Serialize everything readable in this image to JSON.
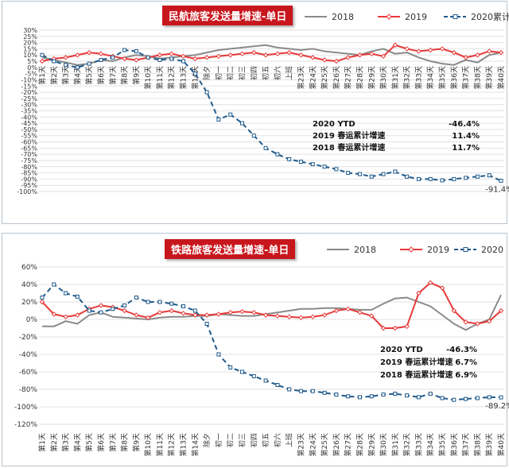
{
  "colors": {
    "s2018": "#8a8a8a",
    "s2019": "#e63939",
    "s2020": "#1f5a8c",
    "title_bg": "#c8161d",
    "grid": "#e2e2e2"
  },
  "categories": [
    "第1天",
    "第2天",
    "第3天",
    "第4天",
    "第5天",
    "第6天",
    "第7天",
    "第8天",
    "第9天",
    "第10天",
    "第11天",
    "第12天",
    "第13天",
    "第14天",
    "除夕",
    "初一",
    "初二",
    "初三",
    "初四",
    "初五",
    "初六",
    "上班",
    "第23天",
    "第24天",
    "第25天",
    "第26天",
    "第27天",
    "第28天",
    "第29天",
    "第30天",
    "第31天",
    "第32天",
    "第33天",
    "第34天",
    "第35天",
    "第36天",
    "第37天",
    "第38天",
    "第39天",
    "第40天"
  ],
  "chart_data": [
    {
      "type": "line",
      "title": "民航旅客发送量增速-单日",
      "ylim": [
        -100,
        30
      ],
      "yticks": [
        "30%",
        "25%",
        "20%",
        "15%",
        "10%",
        "5%",
        "0%",
        "-5%",
        "-10%",
        "-15%",
        "-20%",
        "-25%",
        "-30%",
        "-35%",
        "-40%",
        "-45%",
        "-50%",
        "-55%",
        "-60%",
        "-65%",
        "-70%",
        "-75%",
        "-80%",
        "-85%",
        "-90%",
        "-95%",
        "-100%"
      ],
      "legend": [
        "2018",
        "2019",
        "2020累计"
      ],
      "series": [
        {
          "name": "2018",
          "values": [
            8,
            6,
            4,
            2,
            3,
            6,
            5,
            8,
            10,
            9,
            7,
            8,
            9,
            10,
            12,
            14,
            15,
            16,
            17,
            18,
            16,
            15,
            14,
            15,
            13,
            12,
            11,
            10,
            13,
            15,
            11,
            12,
            8,
            5,
            3,
            2,
            6,
            4,
            10,
            12
          ]
        },
        {
          "name": "2019",
          "values": [
            5,
            7,
            8,
            10,
            12,
            11,
            9,
            7,
            6,
            8,
            10,
            11,
            9,
            7,
            8,
            9,
            10,
            11,
            12,
            10,
            11,
            12,
            10,
            8,
            6,
            5,
            8,
            10,
            11,
            9,
            18,
            15,
            13,
            14,
            15,
            12,
            8,
            10,
            13,
            12
          ]
        },
        {
          "name": "2020累计",
          "values": [
            10,
            5,
            2,
            0,
            3,
            6,
            8,
            14,
            13,
            8,
            6,
            7,
            5,
            -5,
            -20,
            -42,
            -38,
            -45,
            -55,
            -65,
            -70,
            -74,
            -76,
            -78,
            -80,
            -82,
            -85,
            -86,
            -88,
            -86,
            -84,
            -88,
            -90,
            -90,
            -91,
            -90,
            -89,
            -88,
            -87,
            -91.4
          ]
        }
      ],
      "annotations": [
        {
          "label": "2020 YTD",
          "value": "-46.4%"
        },
        {
          "label": "2019 春运累计增速",
          "value": "11.4%"
        },
        {
          "label": "2018 春运累计增速",
          "value": "11.7%"
        }
      ],
      "end_label": "-91.4%"
    },
    {
      "type": "line",
      "title": "铁路旅客发送量增速-单日",
      "ylim": [
        -120,
        60
      ],
      "yticks": [
        "60%",
        "40%",
        "20%",
        "0%",
        "-20%",
        "-40%",
        "-60%",
        "-80%",
        "-100%",
        "-120%"
      ],
      "legend": [
        "2018",
        "2019",
        "2020"
      ],
      "series": [
        {
          "name": "2018",
          "values": [
            -8,
            -8,
            -2,
            -5,
            5,
            8,
            3,
            2,
            1,
            0,
            2,
            3,
            3,
            4,
            4,
            6,
            5,
            4,
            4,
            6,
            8,
            10,
            12,
            12,
            13,
            13,
            12,
            11,
            11,
            18,
            24,
            25,
            20,
            15,
            5,
            -5,
            -12,
            -5,
            0,
            28
          ]
        },
        {
          "name": "2019",
          "values": [
            20,
            6,
            3,
            5,
            12,
            16,
            14,
            10,
            5,
            2,
            8,
            10,
            7,
            5,
            5,
            6,
            8,
            9,
            8,
            5,
            4,
            3,
            2,
            3,
            5,
            10,
            12,
            8,
            4,
            -10,
            -10,
            -8,
            30,
            42,
            36,
            10,
            -3,
            -5,
            -2,
            10
          ]
        },
        {
          "name": "2020",
          "values": [
            25,
            40,
            30,
            26,
            10,
            8,
            12,
            16,
            25,
            20,
            20,
            18,
            15,
            10,
            -5,
            -40,
            -55,
            -60,
            -65,
            -70,
            -75,
            -80,
            -82,
            -82,
            -84,
            -86,
            -88,
            -89,
            -88,
            -86,
            -85,
            -87,
            -89,
            -85,
            -90,
            -92,
            -91,
            -90,
            -89,
            -89.2
          ]
        }
      ],
      "annotations": [
        {
          "label": "2020 YTD",
          "value": "-46.3%"
        },
        {
          "label": "2019 春运累计增速",
          "value": "6.7%"
        },
        {
          "label": "2018 春运累计增速",
          "value": "6.9%"
        }
      ],
      "end_label": "-89.2%"
    }
  ]
}
